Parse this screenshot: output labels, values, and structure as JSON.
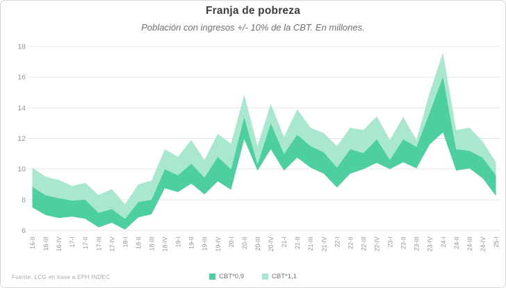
{
  "header": {
    "title": "Franja de pobreza",
    "subtitle": "Población con ingresos +/- 10% de la CBT. En millones."
  },
  "footer": {
    "source": "Fuente: LCG en base a EPH INDEC"
  },
  "colors": {
    "band_dark": "#4ECFA0",
    "band_light": "#A9E7CE",
    "grid": "#E7E7E7",
    "axis_text": "#949494",
    "title_text": "#3D3D3D",
    "subtitle_text": "#6F6F6F",
    "legend_text": "#707070",
    "source_text": "#A8A8A8"
  },
  "chart_data": {
    "type": "area",
    "title": "Franja de pobreza",
    "subtitle": "Población con ingresos +/- 10% de la CBT. En millones.",
    "xlabel": "",
    "ylabel": "",
    "ylim": [
      6,
      18
    ],
    "yticks": [
      6,
      8,
      10,
      12,
      14,
      16,
      18
    ],
    "grid": true,
    "legend_position": "bottom",
    "categories": [
      "16-II",
      "16-III",
      "16-IV",
      "17-I",
      "17-II",
      "17-III",
      "17-IV",
      "18-I",
      "18-II",
      "18-III",
      "18-IV",
      "19-I",
      "19-II",
      "19-III",
      "19-IV",
      "20-I",
      "20-II",
      "20-III",
      "20-IV",
      "21-I",
      "21-II",
      "21-III",
      "21-IV",
      "22-I",
      "22-II",
      "22-III",
      "22-IV",
      "23-I",
      "23-II",
      "23-III",
      "23-IV",
      "24-I",
      "24-II",
      "24-III",
      "24-IV",
      "25-I"
    ],
    "boundaries": {
      "lower": [
        7.5,
        7.0,
        6.8,
        6.9,
        6.75,
        6.2,
        6.5,
        6.05,
        6.85,
        7.05,
        8.75,
        8.5,
        9.05,
        8.35,
        9.2,
        8.65,
        11.95,
        9.9,
        11.3,
        9.9,
        10.75,
        10.1,
        9.7,
        8.8,
        9.7,
        10.0,
        10.4,
        10.0,
        10.45,
        10.05,
        11.6,
        12.4,
        9.9,
        10.05,
        9.4,
        8.25
      ],
      "middle": [
        8.85,
        8.3,
        8.1,
        7.95,
        8.0,
        7.15,
        7.4,
        6.75,
        7.85,
        8.0,
        10.0,
        9.6,
        10.35,
        9.45,
        10.8,
        10.0,
        13.4,
        10.3,
        13.0,
        11.0,
        12.25,
        11.5,
        11.1,
        10.1,
        11.3,
        11.05,
        11.95,
        10.6,
        11.95,
        11.45,
        13.7,
        16.05,
        11.3,
        11.2,
        10.75,
        9.6
      ],
      "upper": [
        10.1,
        9.5,
        9.3,
        8.9,
        9.1,
        8.3,
        8.7,
        7.7,
        9.0,
        9.25,
        11.3,
        10.8,
        11.9,
        10.6,
        12.3,
        11.65,
        14.85,
        11.5,
        14.25,
        12.1,
        13.9,
        12.7,
        12.35,
        11.5,
        12.7,
        12.55,
        13.45,
        11.9,
        13.4,
        11.9,
        15.0,
        17.6,
        12.55,
        12.7,
        11.8,
        10.45
      ]
    },
    "series": [
      {
        "name": "CBT*0,9",
        "color": "#4ECFA0",
        "from": "lower",
        "to": "middle"
      },
      {
        "name": "CBT*1,1",
        "color": "#A9E7CE",
        "from": "middle",
        "to": "upper"
      }
    ]
  }
}
